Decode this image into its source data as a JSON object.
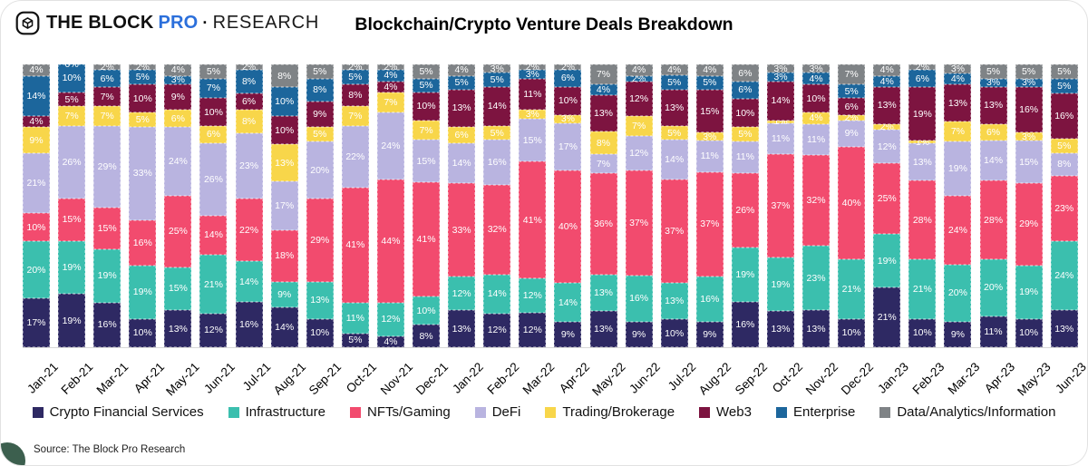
{
  "logo": {
    "brand": "THE BLOCK",
    "pro": "PRO",
    "separator": "·",
    "research": "RESEARCH"
  },
  "source": "Source: The Block Pro Research",
  "colors": {
    "pro_accent": "#2b6fdb",
    "corner_accent": "#3c5f4e"
  },
  "chart_data": {
    "type": "bar",
    "variant": "stacked-100-percent",
    "title": "Blockchain/Crypto Venture Deals Breakdown",
    "xlabel": "",
    "ylabel": "",
    "value_suffix": "%",
    "grid": false,
    "legend_position": "bottom",
    "categories": [
      "Jan-21",
      "Feb-21",
      "Mar-21",
      "Apr-21",
      "May-21",
      "Jun-21",
      "Jul-21",
      "Aug-21",
      "Sep-21",
      "Oct-21",
      "Nov-21",
      "Dec-21",
      "Jan-22",
      "Feb-22",
      "Mar-22",
      "Apr-22",
      "May-22",
      "Jun-22",
      "Jul-22",
      "Aug-22",
      "Sep-22",
      "Oct-22",
      "Nov-22",
      "Dec-22",
      "Jan-23",
      "Feb-23",
      "Mar-23",
      "Apr-23",
      "May-23",
      "Jun-23"
    ],
    "series": [
      {
        "name": "Crypto Financial Services",
        "color": "#2e2963",
        "values": [
          17,
          19,
          16,
          10,
          13,
          12,
          16,
          14,
          10,
          5,
          4,
          8,
          13,
          12,
          12,
          9,
          13,
          9,
          10,
          9,
          16,
          13,
          13,
          10,
          21,
          10,
          9,
          11,
          10,
          13
        ]
      },
      {
        "name": "Infrastructure",
        "color": "#3bbfae",
        "values": [
          20,
          19,
          19,
          19,
          15,
          21,
          14,
          9,
          13,
          11,
          12,
          10,
          12,
          14,
          12,
          14,
          13,
          16,
          13,
          16,
          19,
          19,
          23,
          21,
          19,
          21,
          20,
          20,
          19,
          24
        ]
      },
      {
        "name": "NFTs/Gaming",
        "color": "#f24b6e",
        "values": [
          10,
          15,
          15,
          16,
          25,
          14,
          22,
          18,
          29,
          41,
          44,
          41,
          33,
          32,
          41,
          40,
          36,
          37,
          37,
          37,
          26,
          37,
          32,
          40,
          25,
          28,
          24,
          28,
          29,
          23
        ]
      },
      {
        "name": "DeFi",
        "color": "#b9b4e0",
        "values": [
          21,
          26,
          29,
          33,
          24,
          26,
          23,
          17,
          20,
          22,
          24,
          15,
          14,
          16,
          15,
          17,
          7,
          12,
          14,
          11,
          11,
          11,
          11,
          9,
          12,
          13,
          19,
          14,
          15,
          8
        ]
      },
      {
        "name": "Trading/Brokerage",
        "color": "#f8d64a",
        "values": [
          9,
          7,
          7,
          5,
          6,
          6,
          8,
          13,
          5,
          7,
          7,
          7,
          6,
          5,
          3,
          3,
          8,
          7,
          5,
          3,
          5,
          1,
          4,
          2,
          2,
          1,
          7,
          6,
          3,
          5
        ]
      },
      {
        "name": "Web3",
        "color": "#7d1440",
        "values": [
          4,
          5,
          7,
          10,
          9,
          10,
          6,
          10,
          9,
          8,
          4,
          10,
          13,
          14,
          11,
          10,
          13,
          12,
          13,
          15,
          10,
          14,
          10,
          6,
          13,
          19,
          13,
          13,
          16,
          16
        ]
      },
      {
        "name": "Enterprise",
        "color": "#1c669c",
        "values": [
          14,
          10,
          6,
          5,
          3,
          7,
          8,
          10,
          8,
          5,
          4,
          5,
          5,
          5,
          3,
          6,
          4,
          2,
          5,
          5,
          6,
          3,
          4,
          5,
          4,
          6,
          4,
          3,
          3,
          5
        ]
      },
      {
        "name": "Data/Analytics/Information",
        "color": "#7f8386",
        "values": [
          4,
          0,
          2,
          2,
          4,
          5,
          2,
          8,
          5,
          2,
          2,
          5,
          4,
          3,
          2,
          2,
          7,
          4,
          4,
          4,
          6,
          3,
          3,
          7,
          4,
          2,
          3,
          5,
          5,
          5
        ]
      }
    ]
  }
}
